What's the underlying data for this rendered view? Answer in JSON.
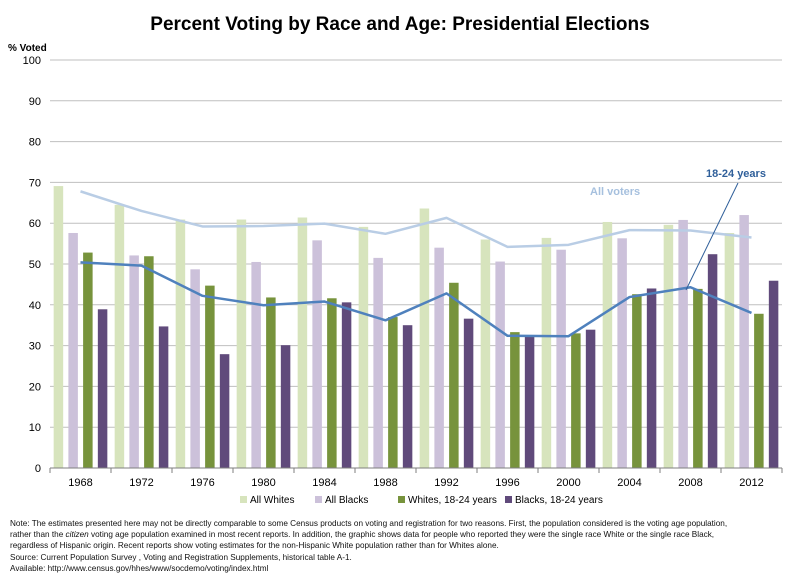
{
  "chart_data": {
    "type": "bar",
    "title": "Percent Voting by Race and Age:  Presidential Elections",
    "ylabel": "% Voted",
    "xlabel": "",
    "ylim": [
      0,
      100
    ],
    "yticks": [
      0,
      10,
      20,
      30,
      40,
      50,
      60,
      70,
      80,
      90,
      100
    ],
    "categories": [
      "1968",
      "1972",
      "1976",
      "1980",
      "1984",
      "1988",
      "1992",
      "1996",
      "2000",
      "2004",
      "2008",
      "2012"
    ],
    "grid": true,
    "legend_position": "bottom",
    "series": [
      {
        "name": "All Whites",
        "type": "bar",
        "color": "#d7e4bd",
        "values": [
          69.1,
          64.5,
          60.9,
          60.9,
          61.4,
          59.1,
          63.6,
          56.0,
          56.4,
          60.3,
          59.6,
          57.6
        ]
      },
      {
        "name": "All Blacks",
        "type": "bar",
        "color": "#ccc1da",
        "values": [
          57.6,
          52.1,
          48.7,
          50.5,
          55.8,
          51.5,
          54.0,
          50.6,
          53.5,
          56.3,
          60.8,
          62.0
        ]
      },
      {
        "name": "Whites, 18-24 years",
        "type": "bar",
        "color": "#77933c",
        "values": [
          52.8,
          51.9,
          44.7,
          41.8,
          41.6,
          37.0,
          45.4,
          33.3,
          33.0,
          42.6,
          43.9,
          37.8
        ]
      },
      {
        "name": "Blacks, 18-24 years",
        "type": "bar",
        "color": "#604a7b",
        "values": [
          38.9,
          34.7,
          27.9,
          30.1,
          40.6,
          35.0,
          36.6,
          32.4,
          33.9,
          44.0,
          52.4,
          45.9
        ]
      },
      {
        "name": "All voters",
        "type": "line",
        "color": "#b9cde5",
        "values": [
          67.8,
          63.0,
          59.2,
          59.3,
          59.9,
          57.4,
          61.3,
          54.2,
          54.7,
          58.3,
          58.2,
          56.5
        ]
      },
      {
        "name": "18-24 years",
        "type": "line",
        "color": "#4f81bd",
        "values": [
          50.4,
          49.6,
          42.2,
          39.9,
          40.8,
          36.2,
          42.8,
          32.4,
          32.3,
          41.9,
          44.3,
          38.0
        ]
      }
    ],
    "annotations": {
      "all_voters": "All voters",
      "youth": "18-24 years"
    }
  },
  "note": {
    "line1": "Note: The estimates presented here may not be directly comparable to some Census products on voting and registration for two reasons. First, the population considered is the voting age population,",
    "line2_pre": "rather than the ",
    "line2_em": "citizen",
    "line2_post": " voting age population examined in most recent reports. In addition, the graphic shows data for people who reported they were the single race White or the single race Black,",
    "line3": "regardless of Hispanic origin. Recent reports show voting estimates for the non-Hispanic White population rather than for Whites alone.",
    "source": "Source: Current Population Survey , Voting and  Registration Supplements, historical table A-1.",
    "available": "Available: http://www.census.gov/hhes/www/socdemo/voting/index.html"
  }
}
